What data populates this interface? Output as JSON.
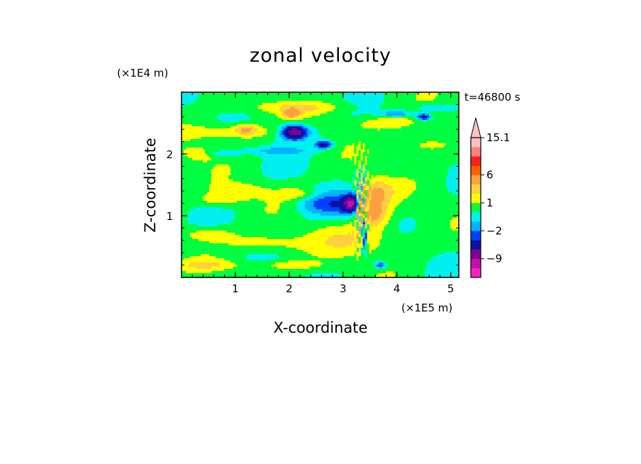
{
  "chart_data": {
    "type": "heatmap",
    "title": "zonal velocity",
    "xlabel": "X-coordinate",
    "ylabel": "Z-coordinate",
    "x_scale_label": "(×1E5 m)",
    "y_scale_label": "(×1E4 m)",
    "time_label": "t=46800 s",
    "xlim": [
      0,
      5.15
    ],
    "ylim": [
      0,
      3.0
    ],
    "x_ticks": [
      {
        "value": 1,
        "label": "1"
      },
      {
        "value": 2,
        "label": "2"
      },
      {
        "value": 3,
        "label": "3"
      },
      {
        "value": 4,
        "label": "4"
      },
      {
        "value": 5,
        "label": "5"
      }
    ],
    "y_ticks": [
      {
        "value": 1,
        "label": "1"
      },
      {
        "value": 2,
        "label": "2"
      }
    ],
    "colorbar": {
      "levels": [
        -15,
        -12,
        -9,
        -6,
        -3,
        -2,
        -1,
        0,
        1,
        2,
        3,
        6,
        9,
        12,
        15.1
      ],
      "colors": [
        "#ff20c0",
        "#c010b0",
        "#800090",
        "#1010a0",
        "#0040ff",
        "#00b4ff",
        "#00f0f0",
        "#00ff40",
        "#ffff00",
        "#ffd040",
        "#ffa040",
        "#ff6000",
        "#ff2020",
        "#ff8080",
        "#ffc0c0"
      ],
      "labels": [
        {
          "value": -9,
          "label": "−9"
        },
        {
          "value": -2,
          "label": "−2"
        },
        {
          "value": 1,
          "label": "1"
        },
        {
          "value": 6,
          "label": "6"
        },
        {
          "value": 15.1,
          "label": "15.1"
        }
      ],
      "extend": "max"
    },
    "features": [
      {
        "x": 0.5,
        "z": 0.7,
        "u": 1.5,
        "sx": 0.5,
        "sz": 0.12
      },
      {
        "x": 1.6,
        "z": 0.55,
        "u": 1.5,
        "sx": 0.7,
        "sz": 0.15
      },
      {
        "x": 3.3,
        "z": 0.6,
        "u": 1.5,
        "sx": 0.8,
        "sz": 0.25
      },
      {
        "x": 0.7,
        "z": 1.25,
        "u": 1.5,
        "sx": 0.4,
        "sz": 0.1
      },
      {
        "x": 1.1,
        "z": 1.4,
        "u": 1.5,
        "sx": 0.5,
        "sz": 0.12
      },
      {
        "x": 2.2,
        "z": 1.35,
        "u": 1.5,
        "sx": 0.4,
        "sz": 0.1
      },
      {
        "x": 0.8,
        "z": 2.35,
        "u": 1.5,
        "sx": 0.8,
        "sz": 0.15
      },
      {
        "x": 1.8,
        "z": 2.35,
        "u": 1.5,
        "sx": 0.6,
        "sz": 0.12
      },
      {
        "x": 3.8,
        "z": 2.5,
        "u": 1.5,
        "sx": 0.7,
        "sz": 0.12
      },
      {
        "x": 4.5,
        "z": 2.15,
        "u": 1.5,
        "sx": 0.5,
        "sz": 0.15
      },
      {
        "x": 2.2,
        "z": 2.75,
        "u": 1.5,
        "sx": 1.0,
        "sz": 0.1
      },
      {
        "x": 0.3,
        "z": 2.0,
        "u": 1.2,
        "sx": 0.3,
        "sz": 0.12
      },
      {
        "x": 0.5,
        "z": 0.2,
        "u": 1.5,
        "sx": 0.6,
        "sz": 0.08
      },
      {
        "x": 2.0,
        "z": 0.2,
        "u": 1.5,
        "sx": 0.6,
        "sz": 0.08
      },
      {
        "x": 2.05,
        "z": 2.65,
        "u": 3.5,
        "sx": 0.15,
        "sz": 0.07
      },
      {
        "x": 1.2,
        "z": 2.4,
        "u": 2.5,
        "sx": 0.2,
        "sz": 0.08
      },
      {
        "x": 3.55,
        "z": 1.05,
        "u": 3.5,
        "sx": 0.3,
        "sz": 0.25
      },
      {
        "x": 3.6,
        "z": 1.4,
        "u": 2.5,
        "sx": 0.35,
        "sz": 0.2
      },
      {
        "x": 3.3,
        "z": 1.15,
        "u": 5.0,
        "sx": 0.07,
        "sz": 0.15
      },
      {
        "x": 2.1,
        "z": 2.35,
        "u": -7.5,
        "sx": 0.2,
        "sz": 0.1
      },
      {
        "x": 2.65,
        "z": 2.15,
        "u": -5.0,
        "sx": 0.15,
        "sz": 0.06
      },
      {
        "x": 2.0,
        "z": 2.35,
        "u": -2.5,
        "sx": 0.5,
        "sz": 0.15
      },
      {
        "x": 4.5,
        "z": 2.6,
        "u": -4.5,
        "sx": 0.12,
        "sz": 0.05
      },
      {
        "x": 3.15,
        "z": 1.2,
        "u": -9.0,
        "sx": 0.12,
        "sz": 0.12
      },
      {
        "x": 2.6,
        "z": 1.2,
        "u": -2.5,
        "sx": 0.45,
        "sz": 0.2
      },
      {
        "x": 3.1,
        "z": 1.15,
        "u": -2.0,
        "sx": 0.3,
        "sz": 0.18
      },
      {
        "x": 3.4,
        "z": 0.65,
        "u": -4.0,
        "sx": 0.05,
        "sz": 0.25
      },
      {
        "x": 0.8,
        "z": 2.0,
        "u": -1.5,
        "sx": 0.3,
        "sz": 0.05
      },
      {
        "x": 4.0,
        "z": 2.65,
        "u": -2.5,
        "sx": 0.3,
        "sz": 0.05
      },
      {
        "x": 4.7,
        "z": 2.75,
        "u": -1.5,
        "sx": 0.4,
        "sz": 0.06
      },
      {
        "x": 3.7,
        "z": 0.2,
        "u": -3.5,
        "sx": 0.1,
        "sz": 0.06
      },
      {
        "x": 1.8,
        "z": 2.05,
        "u": -1.5,
        "sx": 0.6,
        "sz": 0.06
      }
    ]
  }
}
